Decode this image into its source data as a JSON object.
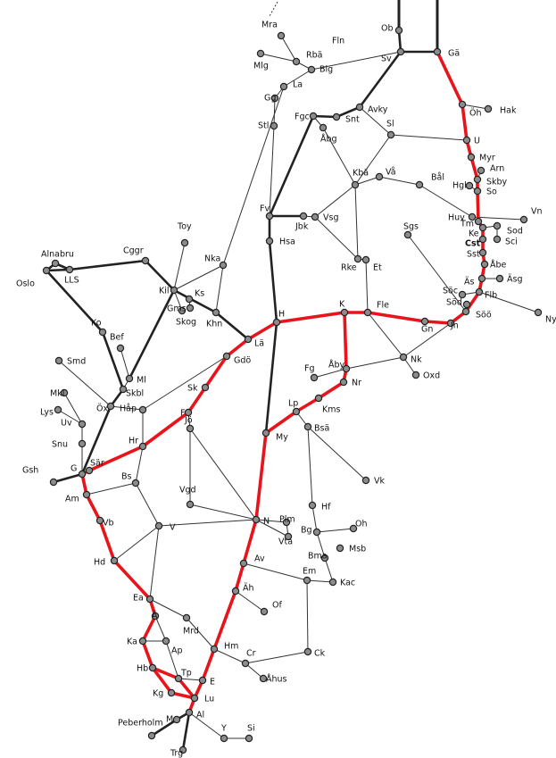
{
  "nodes": [
    "Mra",
    "Mlg",
    "Rbä",
    "Fln",
    "Blg",
    "Ob",
    "Sv",
    "Gä",
    "La",
    "Gg",
    "Avky",
    "Fgc",
    "Snt",
    "Öh",
    "Hak",
    "Stl",
    "Åbg",
    "Sl",
    "U",
    "Myr",
    "Kbä",
    "Vå",
    "Arn",
    "Skby",
    "So",
    "Hgl",
    "Bål",
    "Fv",
    "Jbk",
    "Vsg",
    "Huv",
    "Tm",
    "Vn",
    "Sod",
    "Ke",
    "Hsa",
    "Cst",
    "Sci",
    "Sgs",
    "Toy",
    "Sst",
    "Rke",
    "Et",
    "Cggr",
    "Alnabru",
    "Nka",
    "Åbe",
    "LLS",
    "Oslo",
    "Äs",
    "Äsg",
    "Kil",
    "Ks",
    "Gms",
    "Skog",
    "Khn",
    "Söc",
    "Flb",
    "Söd",
    "Ny",
    "Söö",
    "K",
    "Fle",
    "H",
    "Jn",
    "Gn",
    "Lä",
    "Ko",
    "Bef",
    "Ml",
    "Smd",
    "Gdö",
    "Nk",
    "Fg",
    "Åby",
    "Nr",
    "Oxd",
    "Mkl",
    "Skbl",
    "Kms",
    "Sk",
    "Lys",
    "Öx",
    "Håp",
    "Uv",
    "Lp",
    "F",
    "Jö",
    "Bsä",
    "Hr",
    "My",
    "Snu",
    "Sär",
    "G",
    "Gsh",
    "Vk",
    "Bs",
    "Vgd",
    "Am",
    "Hf",
    "Vb",
    "N",
    "Plm",
    "Oh",
    "Bg",
    "V",
    "Vta",
    "Msb",
    "Bma",
    "Hd",
    "Av",
    "Em",
    "Kac",
    "Äh",
    "Ea",
    "Of",
    "Ä",
    "Mrd",
    "Ka",
    "Ap",
    "Hm",
    "Ck",
    "Cr",
    "Hb",
    "Tp",
    "E",
    "Åhus",
    "Kg",
    "Lu",
    "Al",
    "M",
    "Peberholm",
    "Y",
    "Si",
    "Trg"
  ]
}
